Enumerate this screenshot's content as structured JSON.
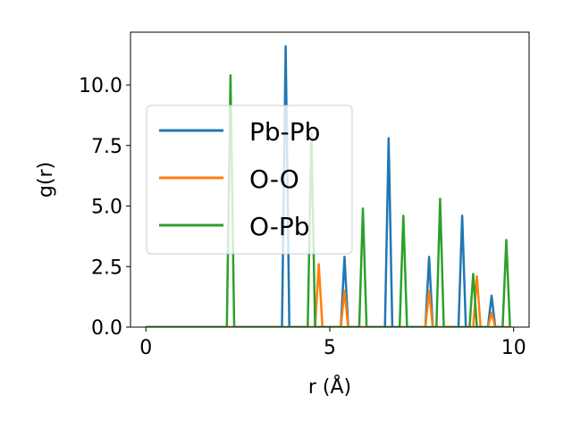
{
  "chart_data": {
    "type": "line",
    "title": "",
    "xlabel": "r (Å)",
    "ylabel": "g(r)",
    "xlim": [
      -0.42,
      10.42
    ],
    "ylim": [
      0,
      12.18
    ],
    "xticks": [
      0,
      5,
      10
    ],
    "xtick_labels": [
      "0",
      "5",
      "10"
    ],
    "yticks": [
      0,
      2.5,
      5,
      7.5,
      10
    ],
    "ytick_labels": [
      "0.0",
      "2.5",
      "5.0",
      "7.5",
      "10.0"
    ],
    "grid": false,
    "legend_position": "center-left",
    "series": [
      {
        "name": "Pb-Pb",
        "color": "#1f77b4",
        "x": [
          0,
          3.7,
          3.8,
          3.9,
          5.3,
          5.4,
          5.5,
          6.5,
          6.6,
          6.7,
          7.6,
          7.7,
          7.8,
          8.5,
          8.6,
          8.7,
          9.3,
          9.4,
          9.5,
          9.9
        ],
        "y": [
          0,
          0,
          11.6,
          0,
          0,
          2.9,
          0,
          0,
          7.8,
          0,
          0,
          2.9,
          0,
          0,
          4.6,
          0,
          0,
          1.3,
          0,
          0
        ]
      },
      {
        "name": "O-O",
        "color": "#ff7f0e",
        "x": [
          0,
          4.6,
          4.7,
          4.8,
          5.3,
          5.4,
          5.5,
          7.6,
          7.7,
          7.8,
          8.9,
          9.0,
          9.1,
          9.3,
          9.4,
          9.5,
          9.9
        ],
        "y": [
          0,
          0,
          2.6,
          0,
          0,
          1.5,
          0,
          0,
          1.5,
          0,
          0,
          2.1,
          0,
          0,
          0.6,
          0,
          0
        ]
      },
      {
        "name": "O-Pb",
        "color": "#2ca02c",
        "x": [
          0,
          2.2,
          2.3,
          2.4,
          4.4,
          4.5,
          4.6,
          5.8,
          5.9,
          6.0,
          6.9,
          7.0,
          7.1,
          7.9,
          8.0,
          8.1,
          8.8,
          8.9,
          9.0,
          9.7,
          9.8,
          9.9
        ],
        "y": [
          0,
          0,
          10.4,
          0,
          0,
          8.0,
          0,
          0,
          4.9,
          0,
          0,
          4.6,
          0,
          0,
          5.3,
          0,
          0,
          2.2,
          0,
          0,
          3.6,
          0
        ]
      }
    ]
  }
}
